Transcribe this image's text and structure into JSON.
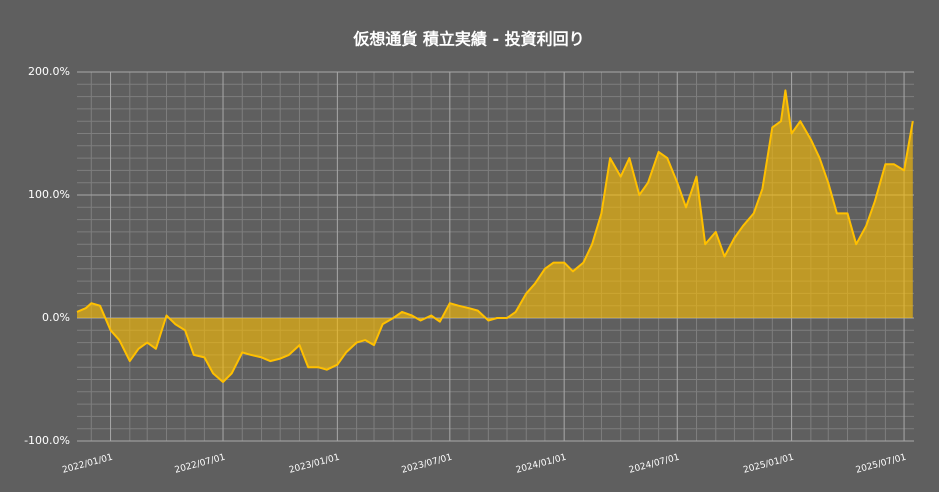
{
  "chart_data": {
    "type": "area",
    "title": "仮想通貨 積立実績 - 投資利回り",
    "x": [
      "2021/11/08",
      "2021/11/22",
      "2021/12/01",
      "2021/12/15",
      "2022/01/01",
      "2022/01/15",
      "2022/02/01",
      "2022/02/15",
      "2022/03/01",
      "2022/03/15",
      "2022/04/01",
      "2022/04/15",
      "2022/05/01",
      "2022/05/15",
      "2022/06/01",
      "2022/06/15",
      "2022/07/01",
      "2022/07/15",
      "2022/08/01",
      "2022/08/15",
      "2022/09/01",
      "2022/09/15",
      "2022/10/01",
      "2022/10/15",
      "2022/11/01",
      "2022/11/15",
      "2022/12/01",
      "2022/12/15",
      "2023/01/01",
      "2023/01/15",
      "2023/02/01",
      "2023/02/15",
      "2023/03/01",
      "2023/03/15",
      "2023/04/01",
      "2023/04/15",
      "2023/05/01",
      "2023/05/15",
      "2023/06/01",
      "2023/06/15",
      "2023/07/01",
      "2023/07/15",
      "2023/08/01",
      "2023/08/15",
      "2023/09/01",
      "2023/09/15",
      "2023/10/01",
      "2023/10/15",
      "2023/11/01",
      "2023/11/15",
      "2023/12/01",
      "2023/12/15",
      "2024/01/01",
      "2024/01/15",
      "2024/02/01",
      "2024/02/15",
      "2024/03/01",
      "2024/03/15",
      "2024/04/01",
      "2024/04/15",
      "2024/05/01",
      "2024/05/15",
      "2024/06/01",
      "2024/06/15",
      "2024/07/01",
      "2024/07/15",
      "2024/08/01",
      "2024/08/15",
      "2024/09/01",
      "2024/09/15",
      "2024/10/01",
      "2024/10/15",
      "2024/11/01",
      "2024/11/15",
      "2024/12/01",
      "2024/12/15",
      "2024/12/22",
      "2025/01/01",
      "2025/01/15",
      "2025/02/01",
      "2025/02/15",
      "2025/03/01",
      "2025/03/15",
      "2025/04/01",
      "2025/04/15",
      "2025/05/01",
      "2025/05/15",
      "2025/06/01",
      "2025/06/15",
      "2025/07/01",
      "2025/07/15"
    ],
    "series": [
      {
        "color": "#ffc000",
        "values": [
          5,
          8,
          12,
          10,
          -10,
          -18,
          -35,
          -25,
          -20,
          -25,
          2,
          -5,
          -10,
          -30,
          -32,
          -45,
          -52,
          -45,
          -28,
          -30,
          -32,
          -35,
          -33,
          -30,
          -22,
          -40,
          -40,
          -42,
          -38,
          -28,
          -20,
          -18,
          -22,
          -5,
          0,
          5,
          2,
          -2,
          2,
          -3,
          12,
          10,
          8,
          6,
          -2,
          0,
          0,
          5,
          20,
          28,
          40,
          45,
          45,
          38,
          45,
          60,
          85,
          130,
          115,
          130,
          100,
          110,
          135,
          130,
          110,
          90,
          115,
          60,
          70,
          50,
          65,
          75,
          85,
          105,
          155,
          160,
          185,
          150,
          160,
          145,
          130,
          110,
          85,
          85,
          60,
          75,
          95,
          125,
          125,
          120,
          160
        ]
      }
    ],
    "xlim": [
      "2021/11/08",
      "2025/07/17"
    ],
    "xticks": [
      "2022/01/01",
      "2022/07/01",
      "2023/01/01",
      "2023/07/01",
      "2024/01/01",
      "2024/07/01",
      "2025/01/01",
      "2025/07/01"
    ],
    "x_minor_ticks": [
      "2021/12/01",
      "2022/02/01",
      "2022/03/01",
      "2022/04/01",
      "2022/05/01",
      "2022/06/01",
      "2022/08/01",
      "2022/09/01",
      "2022/10/01",
      "2022/11/01",
      "2022/12/01",
      "2023/02/01",
      "2023/03/01",
      "2023/04/01",
      "2023/05/01",
      "2023/06/01",
      "2023/08/01",
      "2023/09/01",
      "2023/10/01",
      "2023/11/01",
      "2023/12/01",
      "2024/02/01",
      "2024/03/01",
      "2024/04/01",
      "2024/05/01",
      "2024/06/01",
      "2024/08/01",
      "2024/09/01",
      "2024/10/01",
      "2024/11/01",
      "2024/12/01",
      "2025/02/01",
      "2025/03/01",
      "2025/04/01",
      "2025/05/01",
      "2025/06/01"
    ],
    "ylim": [
      -100,
      200
    ],
    "yticks": [
      {
        "value": -100,
        "label": "-100.0%"
      },
      {
        "value": 0,
        "label": "0.0%"
      },
      {
        "value": 100,
        "label": "100.0%"
      },
      {
        "value": 200,
        "label": "200.0%"
      }
    ],
    "y_minor_ticks": [
      -90,
      -80,
      -70,
      -60,
      -50,
      -40,
      -30,
      -20,
      -10,
      10,
      20,
      30,
      40,
      50,
      60,
      70,
      80,
      90,
      110,
      120,
      130,
      140,
      150,
      160,
      170,
      180,
      190
    ],
    "grid": true
  }
}
